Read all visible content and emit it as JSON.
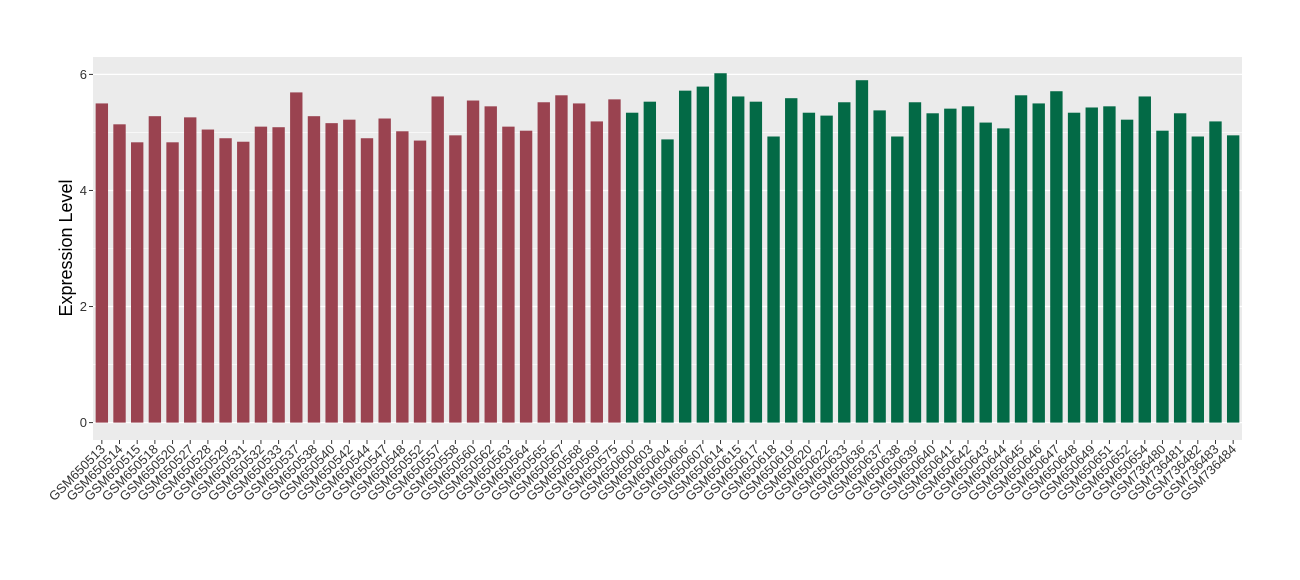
{
  "chart_data": {
    "type": "bar",
    "y_label": "Expression Level",
    "categories": [
      "GSM650513",
      "GSM650514",
      "GSM650515",
      "GSM650518",
      "GSM650520",
      "GSM650527",
      "GSM650528",
      "GSM650529",
      "GSM650531",
      "GSM650532",
      "GSM650533",
      "GSM650537",
      "GSM650538",
      "GSM650540",
      "GSM650542",
      "GSM650544",
      "GSM650547",
      "GSM650548",
      "GSM650552",
      "GSM650557",
      "GSM650558",
      "GSM650560",
      "GSM650562",
      "GSM650563",
      "GSM650564",
      "GSM650565",
      "GSM650567",
      "GSM650568",
      "GSM650569",
      "GSM650575",
      "GSM650600",
      "GSM650603",
      "GSM650604",
      "GSM650606",
      "GSM650607",
      "GSM650614",
      "GSM650615",
      "GSM650617",
      "GSM650618",
      "GSM650619",
      "GSM650620",
      "GSM650622",
      "GSM650633",
      "GSM650636",
      "GSM650637",
      "GSM650638",
      "GSM650639",
      "GSM650640",
      "GSM650641",
      "GSM650642",
      "GSM650643",
      "GSM650644",
      "GSM650645",
      "GSM650646",
      "GSM650647",
      "GSM650648",
      "GSM650649",
      "GSM650651",
      "GSM650652",
      "GSM650654",
      "GSM736480",
      "GSM736481",
      "GSM736482",
      "GSM736483",
      "GSM736484"
    ],
    "values": [
      5.5,
      5.14,
      4.83,
      5.28,
      4.83,
      5.26,
      5.05,
      4.9,
      4.84,
      5.1,
      5.09,
      5.69,
      5.28,
      5.16,
      5.22,
      4.9,
      5.24,
      5.02,
      4.86,
      5.62,
      4.95,
      5.55,
      5.45,
      5.1,
      5.03,
      5.52,
      5.64,
      5.5,
      5.19,
      5.57,
      5.34,
      5.53,
      4.88,
      5.72,
      5.79,
      6.02,
      5.62,
      5.53,
      4.93,
      5.59,
      5.34,
      5.29,
      5.52,
      5.9,
      5.38,
      4.93,
      5.52,
      5.33,
      5.41,
      5.45,
      5.17,
      5.07,
      5.64,
      5.5,
      5.71,
      5.34,
      5.43,
      5.45,
      5.22,
      5.62,
      5.03,
      5.33,
      4.93,
      5.19,
      4.95
    ],
    "colors": [
      "#9a4350",
      "#9a4350",
      "#9a4350",
      "#9a4350",
      "#9a4350",
      "#9a4350",
      "#9a4350",
      "#9a4350",
      "#9a4350",
      "#9a4350",
      "#9a4350",
      "#9a4350",
      "#9a4350",
      "#9a4350",
      "#9a4350",
      "#9a4350",
      "#9a4350",
      "#9a4350",
      "#9a4350",
      "#9a4350",
      "#9a4350",
      "#9a4350",
      "#9a4350",
      "#9a4350",
      "#9a4350",
      "#9a4350",
      "#9a4350",
      "#9a4350",
      "#9a4350",
      "#9a4350",
      "#036a46",
      "#036a46",
      "#036a46",
      "#036a46",
      "#036a46",
      "#036a46",
      "#036a46",
      "#036a46",
      "#036a46",
      "#036a46",
      "#036a46",
      "#036a46",
      "#036a46",
      "#036a46",
      "#036a46",
      "#036a46",
      "#036a46",
      "#036a46",
      "#036a46",
      "#036a46",
      "#036a46",
      "#036a46",
      "#036a46",
      "#036a46",
      "#036a46",
      "#036a46",
      "#036a46",
      "#036a46",
      "#036a46",
      "#036a46",
      "#036a46",
      "#036a46",
      "#036a46",
      "#036a46",
      "#036a46"
    ],
    "ylim": [
      -0.3,
      6.3
    ],
    "yticks": [
      0,
      2,
      4,
      6
    ],
    "grid": true
  }
}
